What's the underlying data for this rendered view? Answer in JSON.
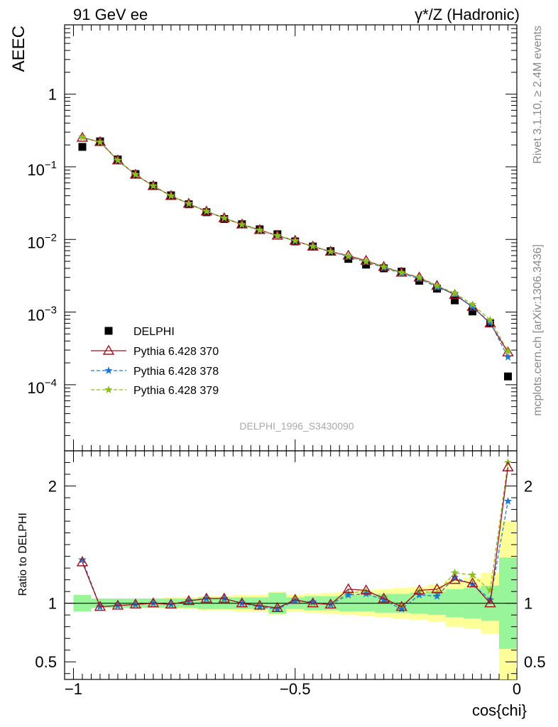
{
  "header": {
    "left": "91 GeV ee",
    "right": "γ*/Z (Hadronic)"
  },
  "side_labels": {
    "rivet": "Rivet 3.1.10, ≥ 2.4M events",
    "mcplots": "mcplots.cern.ch [arXiv:1306.3436]"
  },
  "analysis_id": "DELPHI_1996_S3430090",
  "chart_data": [
    {
      "type": "scatter",
      "panel": "main",
      "ylabel": "AEEC",
      "yscale": "log",
      "ylim": [
        1.23e-05,
        9.0
      ],
      "xlim": [
        -1.02,
        0.0
      ],
      "y_ticks": [
        {
          "v": 1,
          "label": "1",
          "exp": ""
        },
        {
          "v": 0.1,
          "label": "10",
          "exp": "−1"
        },
        {
          "v": 0.01,
          "label": "10",
          "exp": "−2"
        },
        {
          "v": 0.001,
          "label": "10",
          "exp": "−3"
        },
        {
          "v": 0.0001,
          "label": "10",
          "exp": "−4"
        }
      ],
      "legend_position": "bottom-left",
      "x": [
        -0.98,
        -0.94,
        -0.9,
        -0.86,
        -0.82,
        -0.78,
        -0.74,
        -0.7,
        -0.66,
        -0.62,
        -0.58,
        -0.54,
        -0.5,
        -0.46,
        -0.42,
        -0.38,
        -0.34,
        -0.3,
        -0.26,
        -0.22,
        -0.18,
        -0.14,
        -0.1,
        -0.06,
        -0.02
      ],
      "series": [
        {
          "name": "DELPHI",
          "color": "#000000",
          "marker": "square",
          "values": [
            0.188,
            0.224,
            0.126,
            0.0795,
            0.0548,
            0.0405,
            0.0305,
            0.0237,
            0.0191,
            0.0162,
            0.0138,
            0.0118,
            0.0094,
            0.008,
            0.0069,
            0.0054,
            0.0045,
            0.004,
            0.0036,
            0.0027,
            0.0021,
            0.00145,
            0.00102,
            0.0007,
            0.00013
          ]
        },
        {
          "name": "Pythia 6.428 370",
          "color": "#a01020",
          "marker": "triangle",
          "dash": "",
          "values": [
            0.252,
            0.22,
            0.123,
            0.078,
            0.0545,
            0.0398,
            0.0311,
            0.0243,
            0.0197,
            0.0161,
            0.0135,
            0.0113,
            0.0096,
            0.008,
            0.0068,
            0.006,
            0.0051,
            0.0042,
            0.0035,
            0.003,
            0.0023,
            0.00173,
            0.00118,
            0.0007,
            0.00028
          ]
        },
        {
          "name": "Pythia 6.428 378",
          "color": "#1f77d4",
          "marker": "star",
          "dash": "5,3",
          "values": [
            0.256,
            0.218,
            0.122,
            0.078,
            0.0545,
            0.0398,
            0.0311,
            0.0244,
            0.0197,
            0.016,
            0.0133,
            0.0112,
            0.0095,
            0.0081,
            0.0068,
            0.0058,
            0.0049,
            0.0041,
            0.0034,
            0.0029,
            0.0022,
            0.00178,
            0.00118,
            0.00072,
            0.00024
          ]
        },
        {
          "name": "Pythia 6.428 379",
          "color": "#8dbf1a",
          "marker": "star",
          "dash": "5,3",
          "values": [
            0.256,
            0.218,
            0.123,
            0.078,
            0.0545,
            0.0398,
            0.0311,
            0.0244,
            0.0197,
            0.016,
            0.0134,
            0.0113,
            0.0096,
            0.008,
            0.0068,
            0.0059,
            0.005,
            0.0042,
            0.0035,
            0.003,
            0.0023,
            0.00183,
            0.00127,
            0.00078,
            0.00029
          ]
        }
      ]
    },
    {
      "type": "scatter",
      "panel": "ratio",
      "ylabel": "Ratio to DELPHI",
      "xlabel": "cos{chi}",
      "ylim": [
        0.35,
        2.3
      ],
      "xlim": [
        -1.02,
        0.0
      ],
      "y_ticks": [
        0.5,
        1,
        2
      ],
      "x_ticks": [
        {
          "v": -1,
          "label": "−1"
        },
        {
          "v": -0.5,
          "label": "−0.5"
        },
        {
          "v": 0,
          "label": "0"
        }
      ],
      "band_inner": [
        0.07,
        0.04,
        0.04,
        0.04,
        0.04,
        0.04,
        0.04,
        0.05,
        0.05,
        0.05,
        0.05,
        0.09,
        0.05,
        0.06,
        0.06,
        0.07,
        0.07,
        0.08,
        0.08,
        0.09,
        0.1,
        0.12,
        0.13,
        0.15,
        0.39
      ],
      "band_outer": [
        0.07,
        0.04,
        0.04,
        0.04,
        0.04,
        0.05,
        0.05,
        0.06,
        0.06,
        0.07,
        0.07,
        0.1,
        0.07,
        0.08,
        0.09,
        0.1,
        0.11,
        0.12,
        0.13,
        0.14,
        0.16,
        0.2,
        0.22,
        0.26,
        0.7
      ],
      "series": [
        {
          "name": "Pythia 6.428 370",
          "color": "#a01020",
          "marker": "triangle",
          "dash": "",
          "values": [
            1.35,
            0.97,
            0.98,
            0.99,
            1.0,
            0.99,
            1.02,
            1.04,
            1.04,
            1.0,
            0.98,
            0.96,
            1.03,
            1.0,
            0.99,
            1.12,
            1.11,
            1.04,
            0.97,
            1.11,
            1.12,
            1.2,
            1.17,
            1.0,
            2.16
          ]
        },
        {
          "name": "Pythia 6.428 378",
          "color": "#1f77d4",
          "marker": "star",
          "dash": "5,3",
          "values": [
            1.37,
            0.97,
            0.98,
            0.99,
            1.0,
            0.99,
            1.02,
            1.04,
            1.04,
            1.0,
            0.97,
            0.95,
            1.02,
            1.01,
            0.99,
            1.07,
            1.08,
            1.03,
            0.95,
            1.07,
            1.06,
            1.22,
            1.16,
            1.03,
            1.87
          ]
        },
        {
          "name": "Pythia 6.428 379",
          "color": "#8dbf1a",
          "marker": "star",
          "dash": "5,3",
          "values": [
            1.37,
            0.97,
            0.98,
            0.99,
            1.0,
            0.99,
            1.02,
            1.04,
            1.04,
            1.0,
            0.97,
            0.96,
            1.03,
            1.0,
            0.99,
            1.09,
            1.1,
            1.05,
            0.97,
            1.1,
            1.09,
            1.26,
            1.24,
            1.11,
            2.2
          ]
        }
      ]
    }
  ]
}
